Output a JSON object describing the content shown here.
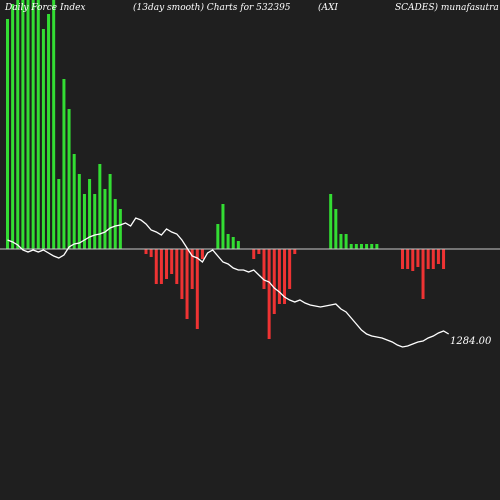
{
  "header": {
    "left": "Daily Force Index",
    "middle": "(13day smooth) Charts for 532395",
    "right_a": "(AXI",
    "right_b": "SCADES) munafasutra"
  },
  "colors": {
    "background": "#1f1f1f",
    "positive": "#33dd33",
    "negative": "#ee3333",
    "zero_line": "#c8c8c8",
    "price_line": "#ffffff"
  },
  "chart_data": {
    "type": "bar",
    "series": [
      {
        "values": [
          230,
          245,
          250,
          250,
          250,
          250,
          250,
          220,
          235,
          255,
          70,
          170,
          140,
          95,
          75,
          55,
          70,
          55,
          85,
          60,
          75,
          50,
          40,
          0,
          0,
          0,
          0,
          -5,
          -8,
          -35,
          -35,
          -30,
          -25,
          -35,
          -50,
          -70,
          -40,
          -80,
          -10,
          0,
          0,
          25,
          45,
          15,
          12,
          8,
          0,
          0,
          -10,
          -5,
          -40,
          -90,
          -65,
          -55,
          -55,
          -40,
          -5,
          0,
          0,
          0,
          0,
          0,
          0,
          55,
          40,
          15,
          15,
          5,
          5,
          5,
          5,
          5,
          5,
          0,
          0,
          0,
          0,
          -20,
          -20,
          -22,
          -18,
          -50,
          -20,
          -20,
          -15,
          -20,
          0
        ],
        "description": "force-index-bars"
      },
      {
        "values": [
          240,
          242,
          245,
          250,
          252,
          250,
          252,
          250,
          253,
          256,
          258,
          255,
          247,
          244,
          243,
          240,
          237,
          235,
          234,
          232,
          228,
          226,
          225,
          223,
          226,
          218,
          220,
          224,
          230,
          232,
          235,
          229,
          232,
          234,
          240,
          248,
          256,
          258,
          262,
          253,
          250,
          256,
          262,
          264,
          268,
          270,
          270,
          272,
          270,
          275,
          280,
          282,
          288,
          292,
          297,
          300,
          302,
          300,
          303,
          305,
          306,
          307,
          306,
          305,
          304,
          309,
          312,
          318,
          324,
          330,
          334,
          336,
          337,
          338,
          340,
          342,
          345,
          347,
          346,
          344,
          342,
          341,
          338,
          336,
          333,
          331,
          334
        ],
        "description": "price-line"
      }
    ],
    "last_price_label": "1284.00"
  }
}
